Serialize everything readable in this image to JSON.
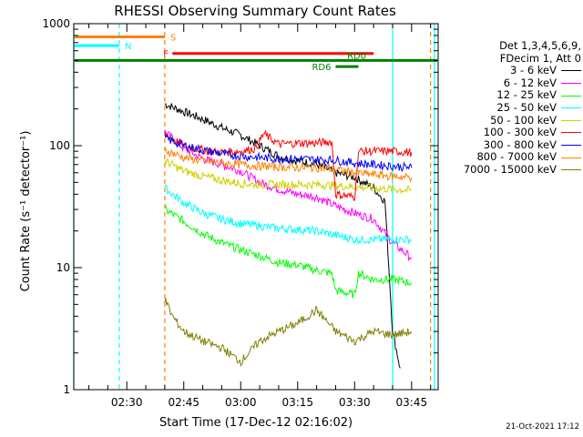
{
  "chart_data": {
    "type": "line",
    "title": "RHESSI Observing Summary Count Rates",
    "xlabel": "Start Time (17-Dec-12 02:16:02)",
    "ylabel": "Count Rate (s⁻¹ detector⁻¹)",
    "y_scale": "log",
    "ylim": [
      1,
      1000
    ],
    "xlim_minutes_utc": [
      "02:16",
      "03:52"
    ],
    "x_ticks": [
      "02:30",
      "02:45",
      "03:00",
      "03:15",
      "03:30",
      "03:45"
    ],
    "y_ticks": [
      "1",
      "10",
      "100",
      "1000"
    ],
    "legend_header": [
      "Det 1,3,4,5,6,9,",
      "FDecim 1, Att 0"
    ],
    "series": [
      {
        "name": "3 - 6 keV",
        "color": "#000000",
        "t": [
          "02:40",
          "02:45",
          "02:50",
          "02:55",
          "03:00",
          "03:05",
          "03:10",
          "03:15",
          "03:20",
          "03:25",
          "03:30",
          "03:35",
          "03:38",
          "03:40",
          "03:42"
        ],
        "values": [
          220,
          190,
          165,
          140,
          122,
          100,
          82,
          75,
          70,
          60,
          55,
          45,
          35,
          3,
          1.5
        ]
      },
      {
        "name": "6 - 12 keV",
        "color": "#ff00ff",
        "t": [
          "02:40",
          "02:45",
          "02:50",
          "02:55",
          "03:00",
          "03:05",
          "03:10",
          "03:15",
          "03:20",
          "03:25",
          "03:30",
          "03:35",
          "03:40",
          "03:45"
        ],
        "values": [
          130,
          95,
          78,
          70,
          62,
          50,
          44,
          40,
          38,
          32,
          28,
          25,
          16,
          12
        ]
      },
      {
        "name": "12 - 25 keV",
        "color": "#00ff00",
        "t": [
          "02:40",
          "02:45",
          "02:50",
          "02:55",
          "03:00",
          "03:05",
          "03:10",
          "03:15",
          "03:20",
          "03:24",
          "03:25",
          "03:30",
          "03:31",
          "03:35",
          "03:40",
          "03:45"
        ],
        "values": [
          30,
          24,
          19,
          16,
          14,
          12.5,
          11,
          10.5,
          9.5,
          9,
          6.5,
          6,
          9,
          8,
          8,
          7.5
        ]
      },
      {
        "name": "25 - 50 keV",
        "color": "#00ffff",
        "t": [
          "02:40",
          "02:45",
          "02:50",
          "02:55",
          "03:00",
          "03:05",
          "03:10",
          "03:15",
          "03:20",
          "03:25",
          "03:30",
          "03:35",
          "03:40",
          "03:45"
        ],
        "values": [
          45,
          34,
          28,
          25,
          23,
          22,
          21,
          20.5,
          20,
          18.5,
          17,
          17,
          17,
          17
        ]
      },
      {
        "name": "50 - 100 keV",
        "color": "#d0d000",
        "t": [
          "02:40",
          "02:45",
          "02:50",
          "02:55",
          "03:00",
          "03:05",
          "03:10",
          "03:15",
          "03:20",
          "03:25",
          "03:30",
          "03:35",
          "03:40",
          "03:45"
        ],
        "values": [
          75,
          62,
          56,
          52,
          49,
          48,
          48,
          48,
          48,
          47,
          46,
          45,
          44,
          43
        ]
      },
      {
        "name": "100 - 300 keV",
        "color": "#ff0000",
        "t": [
          "02:40",
          "02:45",
          "02:50",
          "02:55",
          "03:00",
          "03:04",
          "03:06",
          "03:10",
          "03:15",
          "03:20",
          "03:24",
          "03:25",
          "03:30",
          "03:31",
          "03:40",
          "03:45"
        ],
        "values": [
          125,
          100,
          92,
          88,
          90,
          95,
          125,
          103,
          105,
          105,
          108,
          40,
          38,
          90,
          90,
          88
        ]
      },
      {
        "name": "300 - 800 keV",
        "color": "#0000ff",
        "t": [
          "02:40",
          "02:45",
          "02:50",
          "02:55",
          "03:00",
          "03:05",
          "03:10",
          "03:15",
          "03:20",
          "03:25",
          "03:30",
          "03:35",
          "03:40",
          "03:45"
        ],
        "values": [
          115,
          100,
          92,
          86,
          82,
          80,
          78,
          78,
          77,
          76,
          72,
          70,
          68,
          66
        ]
      },
      {
        "name": "800 - 7000 keV",
        "color": "#ff8000",
        "t": [
          "02:40",
          "02:45",
          "02:50",
          "02:55",
          "03:00",
          "03:05",
          "03:10",
          "03:15",
          "03:20",
          "03:25",
          "03:30",
          "03:35",
          "03:40",
          "03:45"
        ],
        "values": [
          92,
          80,
          75,
          72,
          70,
          68,
          67,
          66,
          66,
          64,
          60,
          58,
          56,
          55
        ]
      },
      {
        "name": "7000 - 15000 keV",
        "color": "#808000",
        "t": [
          "02:40",
          "02:42",
          "02:45",
          "02:50",
          "02:55",
          "03:00",
          "03:05",
          "03:10",
          "03:15",
          "03:20",
          "03:25",
          "03:30",
          "03:35",
          "03:40",
          "03:45"
        ],
        "values": [
          5.5,
          4,
          3,
          2.5,
          2.2,
          1.7,
          2.5,
          3,
          3.5,
          4.5,
          3,
          2.5,
          3,
          2.8,
          3
        ]
      }
    ],
    "annotations": [
      {
        "label": "S",
        "color": "#ff8000",
        "t_start": "02:16",
        "t_end": "02:40",
        "value": 780
      },
      {
        "label": "N",
        "color": "#00ffff",
        "t_start": "02:16",
        "t_end": "02:28",
        "value": 660
      },
      {
        "label": "F",
        "color": "#ff0000",
        "t_start": "02:42",
        "t_end": "03:35",
        "value": 570
      },
      {
        "label": "RD0",
        "color": "#008000",
        "t_start": "02:16",
        "t_end": "03:52",
        "value": 500
      },
      {
        "label": "RD6",
        "color": "#008000",
        "t_start": "03:25",
        "t_end": "03:31",
        "value": 445
      }
    ],
    "vertical_markers": [
      {
        "t": "02:16",
        "color": "#00ffff",
        "style": "solid"
      },
      {
        "t": "02:28",
        "color": "#00ffff",
        "style": "dashed"
      },
      {
        "t": "02:40",
        "color": "#ff8000",
        "style": "dashed"
      },
      {
        "t": "03:40",
        "color": "#00ffff",
        "style": "solid"
      },
      {
        "t": "03:50",
        "color": "#ff8000",
        "style": "dashed"
      },
      {
        "t": "03:51",
        "color": "#00ffff",
        "style": "solid"
      }
    ],
    "grid": false
  },
  "timestamp": "21-Oct-2021 17:12"
}
